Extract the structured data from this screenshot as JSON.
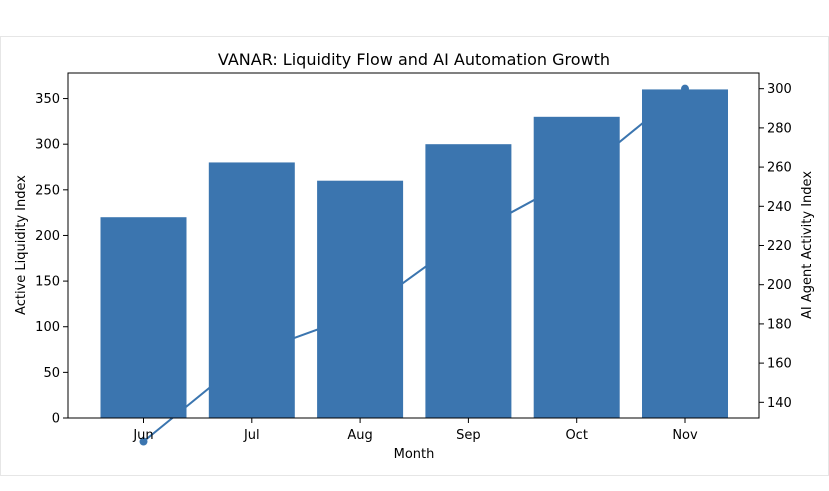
{
  "chart_data": {
    "type": "bar+line",
    "title": "VANAR: Liquidity Flow and AI Automation Growth",
    "xlabel": "Month",
    "categories": [
      "Jun",
      "Jul",
      "Aug",
      "Sep",
      "Oct",
      "Nov"
    ],
    "bar_series": {
      "axis": "left",
      "values": [
        220,
        280,
        260,
        300,
        330,
        360
      ],
      "color": "#3b75af"
    },
    "line_series": {
      "axis": "right",
      "values": [
        120,
        165,
        185,
        225,
        255,
        300
      ],
      "color": "#3b75af",
      "endpoint_marker": true
    },
    "left_axis": {
      "label": "Active Liquidity Index",
      "ylim": [
        0,
        378
      ],
      "ticks": [
        0,
        50,
        100,
        150,
        200,
        250,
        300,
        350
      ]
    },
    "right_axis": {
      "label": "AI Agent Activity Index",
      "ylim": [
        132,
        308
      ],
      "ticks": [
        140,
        160,
        180,
        200,
        220,
        240,
        260,
        280,
        300
      ]
    },
    "grid": false,
    "legend": "none"
  }
}
